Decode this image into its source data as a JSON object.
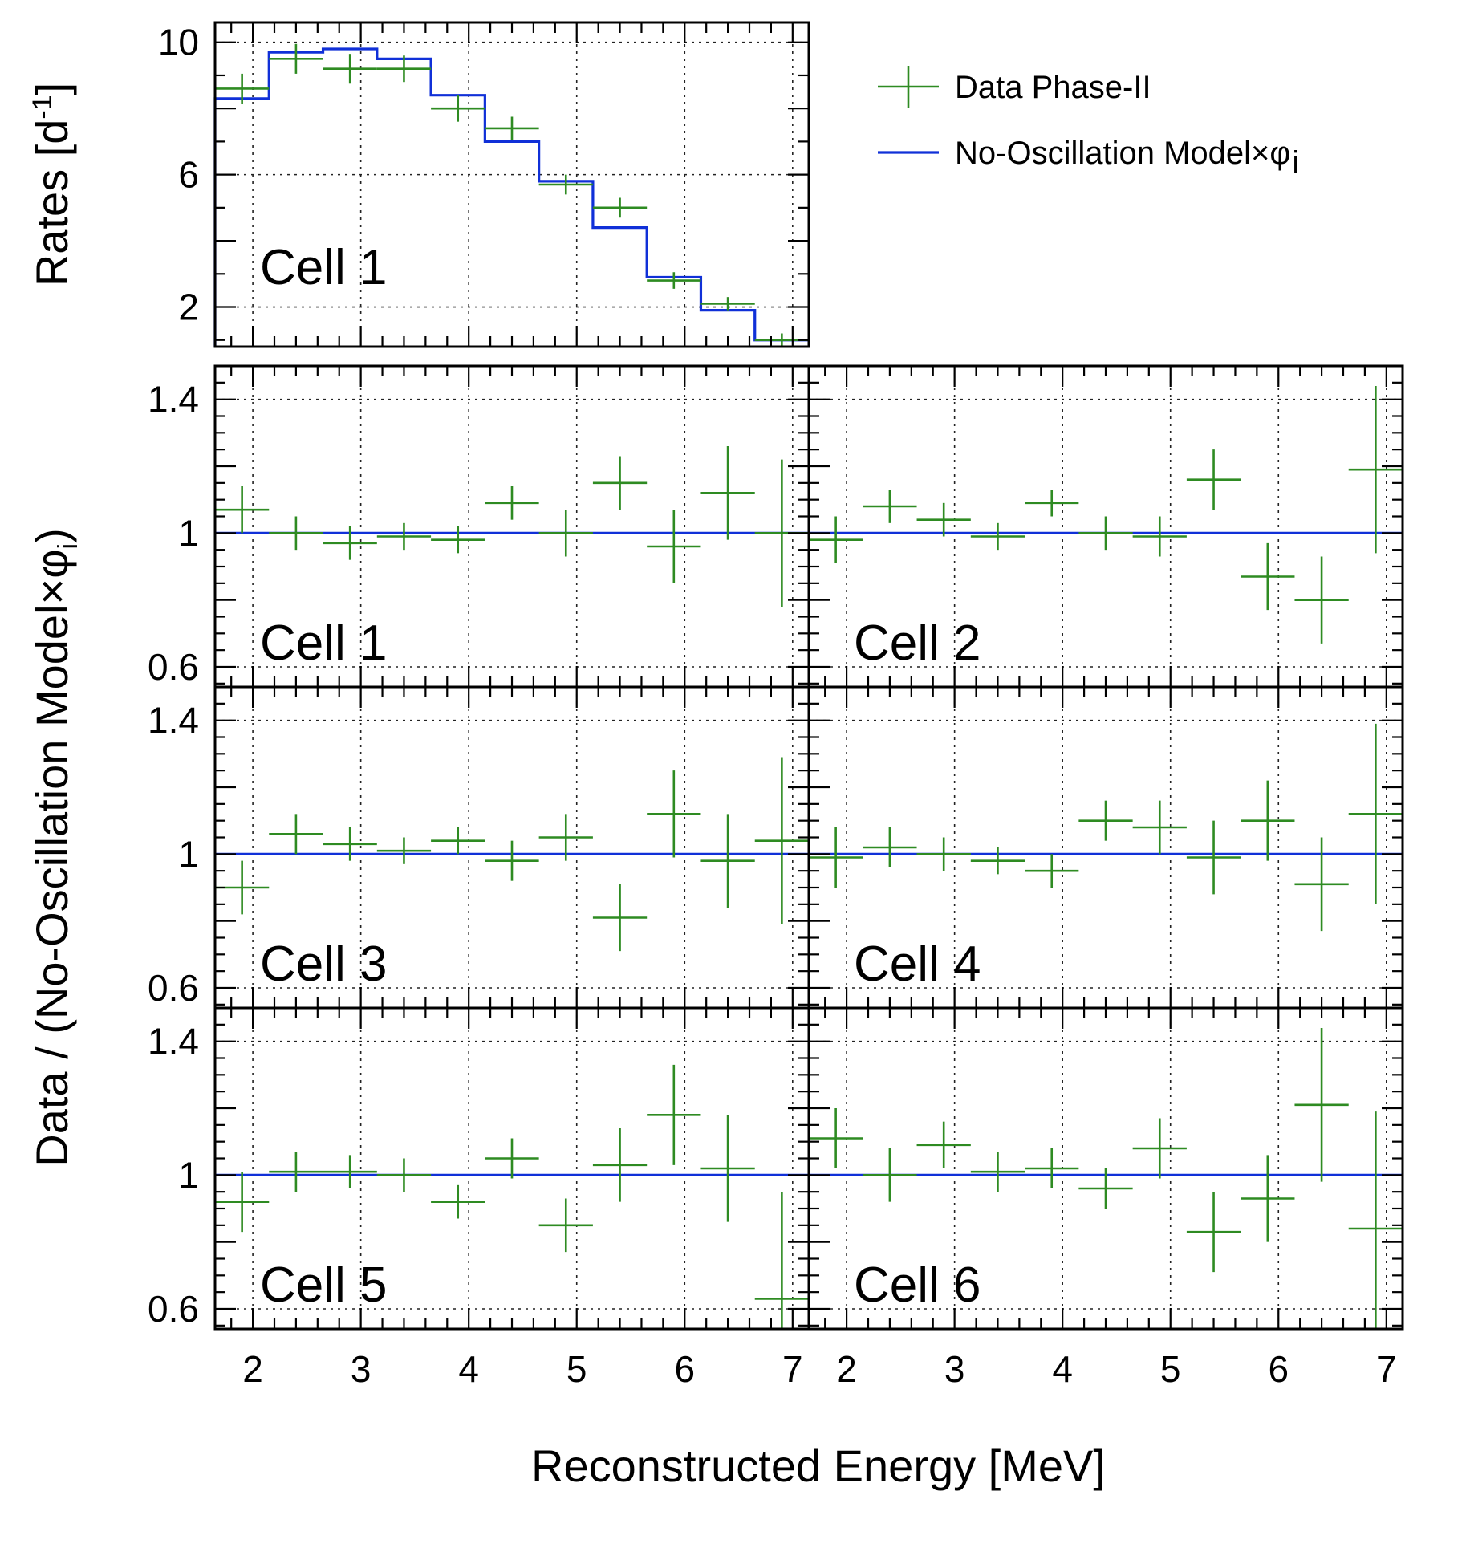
{
  "chart_data": {
    "type": "line",
    "xlabel": "Reconstructed Energy [MeV]",
    "x_ticks": [
      2,
      3,
      4,
      5,
      6,
      7
    ],
    "legend": {
      "placement": "top-right",
      "entries": [
        {
          "name": "Data Phase-II",
          "marker": "cross",
          "color": "#2e8b22"
        },
        {
          "name": "No-Oscillation Model×φ",
          "subscript": "i",
          "marker": "line",
          "color": "#1030d8"
        }
      ]
    },
    "rates_panel": {
      "label": "Cell 1",
      "ylabel": "Rates [d",
      "ylabel_sup": "-1",
      "ylabel_close": "]",
      "xlim": [
        1.65,
        7.15
      ],
      "ylim": [
        0.8,
        10.6
      ],
      "y_ticks": [
        2,
        6,
        10
      ],
      "model": [
        {
          "x0": 1.65,
          "x1": 2.15,
          "y": 8.3
        },
        {
          "x0": 2.15,
          "x1": 2.65,
          "y": 9.7
        },
        {
          "x0": 2.65,
          "x1": 3.15,
          "y": 9.8
        },
        {
          "x0": 3.15,
          "x1": 3.65,
          "y": 9.5
        },
        {
          "x0": 3.65,
          "x1": 4.15,
          "y": 8.4
        },
        {
          "x0": 4.15,
          "x1": 4.65,
          "y": 7.0
        },
        {
          "x0": 4.65,
          "x1": 5.15,
          "y": 5.8
        },
        {
          "x0": 5.15,
          "x1": 5.65,
          "y": 4.4
        },
        {
          "x0": 5.65,
          "x1": 6.15,
          "y": 2.9
        },
        {
          "x0": 6.15,
          "x1": 6.65,
          "y": 1.9
        },
        {
          "x0": 6.65,
          "x1": 7.15,
          "y": 1.0
        }
      ],
      "data": [
        {
          "x": 1.9,
          "xerr": 0.25,
          "y": 8.6,
          "yerr": 0.45
        },
        {
          "x": 2.4,
          "xerr": 0.25,
          "y": 9.5,
          "yerr": 0.45
        },
        {
          "x": 2.9,
          "xerr": 0.25,
          "y": 9.2,
          "yerr": 0.45
        },
        {
          "x": 3.4,
          "xerr": 0.25,
          "y": 9.2,
          "yerr": 0.4
        },
        {
          "x": 3.9,
          "xerr": 0.25,
          "y": 8.0,
          "yerr": 0.4
        },
        {
          "x": 4.4,
          "xerr": 0.25,
          "y": 7.4,
          "yerr": 0.35
        },
        {
          "x": 4.9,
          "xerr": 0.25,
          "y": 5.7,
          "yerr": 0.3
        },
        {
          "x": 5.4,
          "xerr": 0.25,
          "y": 5.0,
          "yerr": 0.3
        },
        {
          "x": 5.9,
          "xerr": 0.25,
          "y": 2.8,
          "yerr": 0.25
        },
        {
          "x": 6.4,
          "xerr": 0.25,
          "y": 2.1,
          "yerr": 0.2
        },
        {
          "x": 6.9,
          "xerr": 0.25,
          "y": 1.0,
          "yerr": 0.2
        }
      ]
    },
    "ratio_ylabel": "Data / (No-Oscillation Model×φ",
    "ratio_ylabel_sub": "i",
    "ratio_ylabel_close": ")",
    "ratio_ylim": [
      0.54,
      1.5
    ],
    "ratio_y_ticks": [
      0.6,
      1,
      1.4
    ],
    "ratio_y_tick_labels": [
      "0.6",
      "1",
      "1.4"
    ],
    "ratio_left_xlim": [
      1.65,
      7.15
    ],
    "ratio_right_xlim": [
      1.65,
      7.15
    ],
    "model_ratio": 1.0,
    "cells": [
      {
        "label": "Cell 1",
        "points": [
          {
            "x": 1.9,
            "xerr": 0.25,
            "y": 1.07,
            "yerr": 0.07
          },
          {
            "x": 2.4,
            "xerr": 0.25,
            "y": 1.0,
            "yerr": 0.05
          },
          {
            "x": 2.9,
            "xerr": 0.25,
            "y": 0.97,
            "yerr": 0.05
          },
          {
            "x": 3.4,
            "xerr": 0.25,
            "y": 0.99,
            "yerr": 0.04
          },
          {
            "x": 3.9,
            "xerr": 0.25,
            "y": 0.98,
            "yerr": 0.04
          },
          {
            "x": 4.4,
            "xerr": 0.25,
            "y": 1.09,
            "yerr": 0.05
          },
          {
            "x": 4.9,
            "xerr": 0.25,
            "y": 1.0,
            "yerr": 0.07
          },
          {
            "x": 5.4,
            "xerr": 0.25,
            "y": 1.15,
            "yerr": 0.08
          },
          {
            "x": 5.9,
            "xerr": 0.25,
            "y": 0.96,
            "yerr": 0.11
          },
          {
            "x": 6.4,
            "xerr": 0.25,
            "y": 1.12,
            "yerr": 0.14
          },
          {
            "x": 6.9,
            "xerr": 0.25,
            "y": 1.0,
            "yerr": 0.22
          }
        ]
      },
      {
        "label": "Cell 2",
        "points": [
          {
            "x": 1.9,
            "xerr": 0.25,
            "y": 0.98,
            "yerr": 0.07
          },
          {
            "x": 2.4,
            "xerr": 0.25,
            "y": 1.08,
            "yerr": 0.05
          },
          {
            "x": 2.9,
            "xerr": 0.25,
            "y": 1.04,
            "yerr": 0.05
          },
          {
            "x": 3.4,
            "xerr": 0.25,
            "y": 0.99,
            "yerr": 0.04
          },
          {
            "x": 3.9,
            "xerr": 0.25,
            "y": 1.09,
            "yerr": 0.04
          },
          {
            "x": 4.4,
            "xerr": 0.25,
            "y": 1.0,
            "yerr": 0.05
          },
          {
            "x": 4.9,
            "xerr": 0.25,
            "y": 0.99,
            "yerr": 0.06
          },
          {
            "x": 5.4,
            "xerr": 0.25,
            "y": 1.16,
            "yerr": 0.09
          },
          {
            "x": 5.9,
            "xerr": 0.25,
            "y": 0.87,
            "yerr": 0.1
          },
          {
            "x": 6.4,
            "xerr": 0.25,
            "y": 0.8,
            "yerr": 0.13
          },
          {
            "x": 6.9,
            "xerr": 0.25,
            "y": 1.19,
            "yerr": 0.25
          }
        ]
      },
      {
        "label": "Cell 3",
        "points": [
          {
            "x": 1.9,
            "xerr": 0.25,
            "y": 0.9,
            "yerr": 0.08
          },
          {
            "x": 2.4,
            "xerr": 0.25,
            "y": 1.06,
            "yerr": 0.06
          },
          {
            "x": 2.9,
            "xerr": 0.25,
            "y": 1.03,
            "yerr": 0.05
          },
          {
            "x": 3.4,
            "xerr": 0.25,
            "y": 1.01,
            "yerr": 0.04
          },
          {
            "x": 3.9,
            "xerr": 0.25,
            "y": 1.04,
            "yerr": 0.04
          },
          {
            "x": 4.4,
            "xerr": 0.25,
            "y": 0.98,
            "yerr": 0.06
          },
          {
            "x": 4.9,
            "xerr": 0.25,
            "y": 1.05,
            "yerr": 0.07
          },
          {
            "x": 5.4,
            "xerr": 0.25,
            "y": 0.81,
            "yerr": 0.1
          },
          {
            "x": 5.9,
            "xerr": 0.25,
            "y": 1.12,
            "yerr": 0.13
          },
          {
            "x": 6.4,
            "xerr": 0.25,
            "y": 0.98,
            "yerr": 0.14
          },
          {
            "x": 6.9,
            "xerr": 0.25,
            "y": 1.04,
            "yerr": 0.25
          }
        ]
      },
      {
        "label": "Cell 4",
        "points": [
          {
            "x": 1.9,
            "xerr": 0.25,
            "y": 0.99,
            "yerr": 0.09
          },
          {
            "x": 2.4,
            "xerr": 0.25,
            "y": 1.02,
            "yerr": 0.06
          },
          {
            "x": 2.9,
            "xerr": 0.25,
            "y": 1.0,
            "yerr": 0.05
          },
          {
            "x": 3.4,
            "xerr": 0.25,
            "y": 0.98,
            "yerr": 0.04
          },
          {
            "x": 3.9,
            "xerr": 0.25,
            "y": 0.95,
            "yerr": 0.05
          },
          {
            "x": 4.4,
            "xerr": 0.25,
            "y": 1.1,
            "yerr": 0.06
          },
          {
            "x": 4.9,
            "xerr": 0.25,
            "y": 1.08,
            "yerr": 0.08
          },
          {
            "x": 5.4,
            "xerr": 0.25,
            "y": 0.99,
            "yerr": 0.11
          },
          {
            "x": 5.9,
            "xerr": 0.25,
            "y": 1.1,
            "yerr": 0.12
          },
          {
            "x": 6.4,
            "xerr": 0.25,
            "y": 0.91,
            "yerr": 0.14
          },
          {
            "x": 6.9,
            "xerr": 0.25,
            "y": 1.12,
            "yerr": 0.27
          }
        ]
      },
      {
        "label": "Cell 5",
        "points": [
          {
            "x": 1.9,
            "xerr": 0.25,
            "y": 0.92,
            "yerr": 0.09
          },
          {
            "x": 2.4,
            "xerr": 0.25,
            "y": 1.01,
            "yerr": 0.06
          },
          {
            "x": 2.9,
            "xerr": 0.25,
            "y": 1.01,
            "yerr": 0.05
          },
          {
            "x": 3.4,
            "xerr": 0.25,
            "y": 1.0,
            "yerr": 0.05
          },
          {
            "x": 3.9,
            "xerr": 0.25,
            "y": 0.92,
            "yerr": 0.05
          },
          {
            "x": 4.4,
            "xerr": 0.25,
            "y": 1.05,
            "yerr": 0.06
          },
          {
            "x": 4.9,
            "xerr": 0.25,
            "y": 0.85,
            "yerr": 0.08
          },
          {
            "x": 5.4,
            "xerr": 0.25,
            "y": 1.03,
            "yerr": 0.11
          },
          {
            "x": 5.9,
            "xerr": 0.25,
            "y": 1.18,
            "yerr": 0.15
          },
          {
            "x": 6.4,
            "xerr": 0.25,
            "y": 1.02,
            "yerr": 0.16
          },
          {
            "x": 6.9,
            "xerr": 0.25,
            "y": 0.63,
            "yerr": 0.32
          }
        ]
      },
      {
        "label": "Cell 6",
        "points": [
          {
            "x": 1.9,
            "xerr": 0.25,
            "y": 1.11,
            "yerr": 0.09
          },
          {
            "x": 2.4,
            "xerr": 0.25,
            "y": 1.0,
            "yerr": 0.08
          },
          {
            "x": 2.9,
            "xerr": 0.25,
            "y": 1.09,
            "yerr": 0.07
          },
          {
            "x": 3.4,
            "xerr": 0.25,
            "y": 1.01,
            "yerr": 0.06
          },
          {
            "x": 3.9,
            "xerr": 0.25,
            "y": 1.02,
            "yerr": 0.06
          },
          {
            "x": 4.4,
            "xerr": 0.25,
            "y": 0.96,
            "yerr": 0.06
          },
          {
            "x": 4.9,
            "xerr": 0.25,
            "y": 1.08,
            "yerr": 0.09
          },
          {
            "x": 5.4,
            "xerr": 0.25,
            "y": 0.83,
            "yerr": 0.12
          },
          {
            "x": 5.9,
            "xerr": 0.25,
            "y": 0.93,
            "yerr": 0.13
          },
          {
            "x": 6.4,
            "xerr": 0.25,
            "y": 1.21,
            "yerr": 0.23
          },
          {
            "x": 6.9,
            "xerr": 0.25,
            "y": 0.84,
            "yerr": 0.35
          }
        ]
      }
    ]
  }
}
